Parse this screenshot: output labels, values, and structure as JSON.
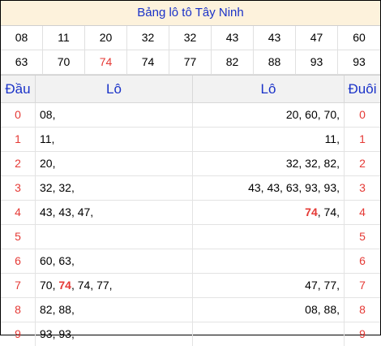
{
  "title": "Bảng lô tô Tây Ninh",
  "numbers": [
    "08",
    "11",
    "20",
    "32",
    "32",
    "43",
    "43",
    "47",
    "60",
    "63",
    "70",
    "74",
    "74",
    "77",
    "82",
    "88",
    "93",
    "93"
  ],
  "highlight_number": "74",
  "highlight_color": "#e53935",
  "title_color": "#1a32c8",
  "headers": {
    "dau": "Đầu",
    "lo_left": "Lô",
    "lo_right": "Lô",
    "duoi": "Đuôi"
  },
  "rows": [
    {
      "dau": "0",
      "left": [
        "08"
      ],
      "right": [
        "20",
        "60",
        "70"
      ],
      "duoi": "0"
    },
    {
      "dau": "1",
      "left": [
        "11"
      ],
      "right": [
        "11"
      ],
      "duoi": "1"
    },
    {
      "dau": "2",
      "left": [
        "20"
      ],
      "right": [
        "32",
        "32",
        "82"
      ],
      "duoi": "2"
    },
    {
      "dau": "3",
      "left": [
        "32",
        "32"
      ],
      "right": [
        "43",
        "43",
        "63",
        "93",
        "93"
      ],
      "duoi": "3"
    },
    {
      "dau": "4",
      "left": [
        "43",
        "43",
        "47"
      ],
      "right": [
        "74",
        "74"
      ],
      "duoi": "4"
    },
    {
      "dau": "5",
      "left": [],
      "right": [],
      "duoi": "5"
    },
    {
      "dau": "6",
      "left": [
        "60",
        "63"
      ],
      "right": [],
      "duoi": "6"
    },
    {
      "dau": "7",
      "left": [
        "70",
        "74",
        "74",
        "77"
      ],
      "right": [
        "47",
        "77"
      ],
      "duoi": "7"
    },
    {
      "dau": "8",
      "left": [
        "82",
        "88"
      ],
      "right": [
        "08",
        "88"
      ],
      "duoi": "8"
    },
    {
      "dau": "9",
      "left": [
        "93",
        "93"
      ],
      "right": [],
      "duoi": "9"
    }
  ]
}
